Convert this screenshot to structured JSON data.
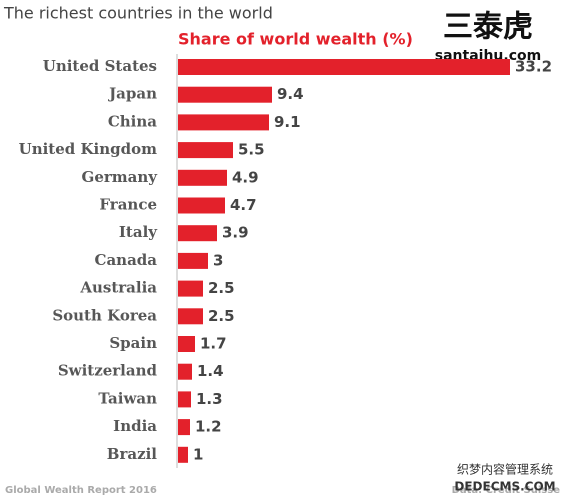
{
  "chart_data": {
    "type": "bar",
    "orientation": "horizontal",
    "title": "The richest countries in the world",
    "subtitle": "Share of world wealth (%)",
    "categories": [
      "United States",
      "Japan",
      "China",
      "United Kingdom",
      "Germany",
      "France",
      "Italy",
      "Canada",
      "Australia",
      "South Korea",
      "Spain",
      "Switzerland",
      "Taiwan",
      "India",
      "Brazil"
    ],
    "values": [
      33.2,
      9.4,
      9.1,
      5.5,
      4.9,
      4.7,
      3.9,
      3,
      2.5,
      2.5,
      1.7,
      1.4,
      1.3,
      1.2,
      1
    ],
    "color": "#e3212b",
    "source_left": "Global Wealth Report 2016",
    "source_right": "Data: Credit Suisse",
    "watermarks": [
      "三泰虎",
      "santaihu.com",
      "织梦内容管理系统",
      "DEDECMS.COM"
    ]
  }
}
